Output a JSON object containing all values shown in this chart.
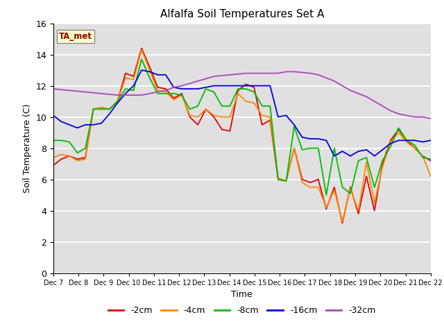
{
  "title": "Alfalfa Soil Temperatures Set A",
  "xlabel": "Time",
  "ylabel": "Soil Temperature (C)",
  "xlabels": [
    "Dec 7",
    "Dec 8",
    "Dec 9",
    "Dec 10",
    "Dec 11",
    "Dec 12",
    "Dec 13",
    "Dec 14",
    "Dec 15",
    "Dec 16",
    "Dec 17",
    "Dec 18",
    "Dec 19",
    "Dec 20",
    "Dec 21",
    "Dec 22"
  ],
  "ylim": [
    0,
    16
  ],
  "yticks": [
    0,
    2,
    4,
    6,
    8,
    10,
    12,
    14,
    16
  ],
  "annotation_text": "TA_met",
  "bg_color": "#e0e0e0",
  "series": {
    "neg2cm": {
      "label": "-2cm",
      "color": "#dd0000",
      "data": [
        6.9,
        7.3,
        7.5,
        7.3,
        7.4,
        10.5,
        10.6,
        10.5,
        11.0,
        12.8,
        12.6,
        14.4,
        13.2,
        11.9,
        11.8,
        11.2,
        11.5,
        10.0,
        9.5,
        10.5,
        10.0,
        9.2,
        9.1,
        11.7,
        12.1,
        11.9,
        9.5,
        9.8,
        6.0,
        5.9,
        8.0,
        6.0,
        5.8,
        6.0,
        4.1,
        5.5,
        3.2,
        5.5,
        3.8,
        6.2,
        4.0,
        7.0,
        8.5,
        9.2,
        8.5,
        8.0,
        7.5,
        7.2
      ]
    },
    "neg4cm": {
      "label": "-4cm",
      "color": "#ff8800",
      "data": [
        7.4,
        7.6,
        7.5,
        7.2,
        7.3,
        10.5,
        10.6,
        10.5,
        11.0,
        12.5,
        12.4,
        14.3,
        13.0,
        11.7,
        11.6,
        11.1,
        11.4,
        10.1,
        10.0,
        10.5,
        10.1,
        10.0,
        10.0,
        11.5,
        11.0,
        10.9,
        10.1,
        10.0,
        6.1,
        5.9,
        8.0,
        5.8,
        5.5,
        5.5,
        4.2,
        5.3,
        3.3,
        5.4,
        4.0,
        7.1,
        4.5,
        6.8,
        8.4,
        9.0,
        8.4,
        8.0,
        7.5,
        6.2
      ]
    },
    "neg8cm": {
      "label": "-8cm",
      "color": "#00bb00",
      "data": [
        8.5,
        8.5,
        8.4,
        7.7,
        8.0,
        10.5,
        10.5,
        10.5,
        11.0,
        11.8,
        11.7,
        13.7,
        12.5,
        11.5,
        11.5,
        11.5,
        11.4,
        10.5,
        10.7,
        11.8,
        11.6,
        10.7,
        10.7,
        11.8,
        11.8,
        11.6,
        10.7,
        10.7,
        6.0,
        5.9,
        9.4,
        7.9,
        8.0,
        8.0,
        5.0,
        8.0,
        5.5,
        5.1,
        7.2,
        7.4,
        5.5,
        7.2,
        8.1,
        9.3,
        8.5,
        8.2,
        7.4,
        7.3
      ]
    },
    "neg16cm": {
      "label": "-16cm",
      "color": "#0000dd",
      "data": [
        10.1,
        9.7,
        9.5,
        9.3,
        9.5,
        9.5,
        9.6,
        10.2,
        10.9,
        11.5,
        12.0,
        13.0,
        12.9,
        12.7,
        12.7,
        11.9,
        11.8,
        11.8,
        11.8,
        11.9,
        12.0,
        12.0,
        12.0,
        12.0,
        12.0,
        12.0,
        12.0,
        12.0,
        10.0,
        10.1,
        9.5,
        8.7,
        8.6,
        8.6,
        8.5,
        7.5,
        7.8,
        7.5,
        7.8,
        7.9,
        7.5,
        7.9,
        8.3,
        8.5,
        8.5,
        8.5,
        8.4,
        8.5
      ]
    },
    "neg32cm": {
      "label": "-32cm",
      "color": "#aa44bb",
      "data": [
        11.8,
        11.75,
        11.7,
        11.65,
        11.6,
        11.55,
        11.5,
        11.45,
        11.4,
        11.4,
        11.4,
        11.4,
        11.5,
        11.6,
        11.7,
        11.9,
        12.0,
        12.15,
        12.3,
        12.45,
        12.6,
        12.65,
        12.7,
        12.75,
        12.8,
        12.8,
        12.8,
        12.8,
        12.8,
        12.9,
        12.9,
        12.85,
        12.8,
        12.7,
        12.5,
        12.3,
        12.0,
        11.7,
        11.5,
        11.3,
        11.0,
        10.7,
        10.4,
        10.2,
        10.1,
        10.0,
        10.0,
        9.9
      ]
    }
  }
}
